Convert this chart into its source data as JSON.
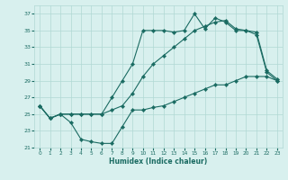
{
  "title": "",
  "xlabel": "Humidex (Indice chaleur)",
  "bg_color": "#d8f0ee",
  "grid_color": "#b0d8d4",
  "line_color": "#1a6b62",
  "xlim": [
    -0.5,
    23.5
  ],
  "ylim": [
    21,
    38
  ],
  "yticks": [
    21,
    23,
    25,
    27,
    29,
    31,
    33,
    35,
    37
  ],
  "xticks": [
    0,
    1,
    2,
    3,
    4,
    5,
    6,
    7,
    8,
    9,
    10,
    11,
    12,
    13,
    14,
    15,
    16,
    17,
    18,
    19,
    20,
    21,
    22,
    23
  ],
  "line1_x": [
    0,
    1,
    2,
    3,
    4,
    5,
    6,
    7,
    8,
    9,
    10,
    11,
    12,
    13,
    14,
    15,
    16,
    17,
    18,
    19,
    20,
    21,
    22,
    23
  ],
  "line1_y": [
    26.0,
    24.5,
    25.0,
    25.0,
    25.0,
    25.0,
    25.0,
    27.0,
    29.0,
    31.0,
    35.0,
    35.0,
    35.0,
    34.8,
    35.0,
    37.0,
    35.2,
    36.5,
    36.0,
    35.0,
    35.0,
    34.5,
    30.0,
    29.0
  ],
  "line2_x": [
    0,
    1,
    2,
    3,
    4,
    5,
    6,
    7,
    8,
    9,
    10,
    11,
    12,
    13,
    14,
    15,
    16,
    17,
    18,
    19,
    20,
    21,
    22,
    23
  ],
  "line2_y": [
    26.0,
    24.5,
    25.0,
    25.0,
    25.0,
    25.0,
    25.0,
    25.5,
    26.0,
    27.5,
    29.5,
    31.0,
    32.0,
    33.0,
    34.0,
    35.0,
    35.5,
    36.0,
    36.2,
    35.2,
    35.0,
    34.8,
    30.2,
    29.2
  ],
  "line3_x": [
    0,
    1,
    2,
    3,
    4,
    5,
    6,
    7,
    8,
    9,
    10,
    11,
    12,
    13,
    14,
    15,
    16,
    17,
    18,
    19,
    20,
    21,
    22,
    23
  ],
  "line3_y": [
    26.0,
    24.5,
    25.0,
    24.0,
    22.0,
    21.7,
    21.5,
    21.5,
    23.5,
    25.5,
    25.5,
    25.8,
    26.0,
    26.5,
    27.0,
    27.5,
    28.0,
    28.5,
    28.5,
    29.0,
    29.5,
    29.5,
    29.5,
    29.0
  ]
}
